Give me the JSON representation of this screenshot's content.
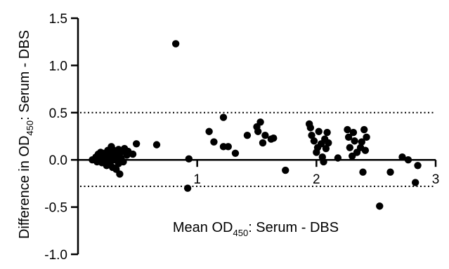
{
  "chart_data": {
    "type": "scatter",
    "xlabel": "Mean OD450: Serum - DBS",
    "ylabel": "Difference in OD450: Serum - DBS",
    "xlabel_parts": {
      "pre": "Mean OD",
      "sub": "450",
      "post": ": Serum - DBS"
    },
    "ylabel_parts": {
      "pre": "Difference in OD",
      "sub": "450",
      "post": ": Serum - DBS"
    },
    "xlim": [
      0,
      3
    ],
    "ylim": [
      -1.0,
      1.5
    ],
    "x_ticks": [
      1,
      2,
      3
    ],
    "x_tick_labels": [
      "1",
      "2",
      "3"
    ],
    "y_ticks": [
      -1.0,
      -0.5,
      0.0,
      0.5,
      1.0,
      1.5
    ],
    "y_tick_labels": [
      "-1.0",
      "-0.5",
      "0.0",
      "0.5",
      "1.0",
      "1.5"
    ],
    "grid": false,
    "reference_lines": [
      {
        "y": 0.5,
        "style": "dotted"
      },
      {
        "y": -0.28,
        "style": "dotted"
      }
    ],
    "points": [
      {
        "x": 0.12,
        "y": 0.0
      },
      {
        "x": 0.15,
        "y": 0.03
      },
      {
        "x": 0.16,
        "y": -0.02
      },
      {
        "x": 0.17,
        "y": 0.06
      },
      {
        "x": 0.18,
        "y": 0.0
      },
      {
        "x": 0.19,
        "y": 0.08
      },
      {
        "x": 0.2,
        "y": -0.03
      },
      {
        "x": 0.21,
        "y": 0.04
      },
      {
        "x": 0.22,
        "y": 0.07
      },
      {
        "x": 0.23,
        "y": 0.0
      },
      {
        "x": 0.24,
        "y": -0.06
      },
      {
        "x": 0.25,
        "y": 0.1
      },
      {
        "x": 0.26,
        "y": 0.03
      },
      {
        "x": 0.27,
        "y": -0.03
      },
      {
        "x": 0.28,
        "y": 0.14
      },
      {
        "x": 0.28,
        "y": 0.05
      },
      {
        "x": 0.29,
        "y": -0.08
      },
      {
        "x": 0.3,
        "y": 0.0
      },
      {
        "x": 0.3,
        "y": 0.1
      },
      {
        "x": 0.31,
        "y": 0.02
      },
      {
        "x": 0.32,
        "y": -0.1
      },
      {
        "x": 0.33,
        "y": 0.06
      },
      {
        "x": 0.34,
        "y": -0.04
      },
      {
        "x": 0.34,
        "y": 0.11
      },
      {
        "x": 0.35,
        "y": -0.15
      },
      {
        "x": 0.36,
        "y": 0.02
      },
      {
        "x": 0.37,
        "y": 0.09
      },
      {
        "x": 0.38,
        "y": -0.02
      },
      {
        "x": 0.39,
        "y": 0.12
      },
      {
        "x": 0.41,
        "y": 0.05
      },
      {
        "x": 0.42,
        "y": 0.09
      },
      {
        "x": 0.46,
        "y": 0.06
      },
      {
        "x": 0.49,
        "y": 0.17
      },
      {
        "x": 0.66,
        "y": 0.16
      },
      {
        "x": 0.82,
        "y": 1.23
      },
      {
        "x": 0.92,
        "y": -0.3
      },
      {
        "x": 0.93,
        "y": 0.01
      },
      {
        "x": 1.1,
        "y": 0.3
      },
      {
        "x": 1.14,
        "y": 0.19
      },
      {
        "x": 1.22,
        "y": 0.45
      },
      {
        "x": 1.22,
        "y": 0.14
      },
      {
        "x": 1.26,
        "y": 0.14
      },
      {
        "x": 1.32,
        "y": 0.07
      },
      {
        "x": 1.42,
        "y": 0.26
      },
      {
        "x": 1.5,
        "y": 0.35
      },
      {
        "x": 1.51,
        "y": 0.3
      },
      {
        "x": 1.53,
        "y": 0.4
      },
      {
        "x": 1.55,
        "y": 0.18
      },
      {
        "x": 1.57,
        "y": 0.26
      },
      {
        "x": 1.62,
        "y": 0.22
      },
      {
        "x": 1.64,
        "y": 0.23
      },
      {
        "x": 1.74,
        "y": -0.11
      },
      {
        "x": 1.94,
        "y": 0.38
      },
      {
        "x": 1.95,
        "y": 0.34
      },
      {
        "x": 1.96,
        "y": 0.26
      },
      {
        "x": 1.98,
        "y": 0.2
      },
      {
        "x": 2.0,
        "y": 0.08
      },
      {
        "x": 2.01,
        "y": 0.13
      },
      {
        "x": 2.02,
        "y": 0.3
      },
      {
        "x": 2.04,
        "y": 0.17
      },
      {
        "x": 2.05,
        "y": 0.03
      },
      {
        "x": 2.06,
        "y": -0.02
      },
      {
        "x": 2.07,
        "y": 0.22
      },
      {
        "x": 2.08,
        "y": 0.12
      },
      {
        "x": 2.09,
        "y": 0.29
      },
      {
        "x": 2.1,
        "y": 0.18
      },
      {
        "x": 2.18,
        "y": 0.02
      },
      {
        "x": 2.26,
        "y": 0.32
      },
      {
        "x": 2.27,
        "y": 0.24
      },
      {
        "x": 2.28,
        "y": 0.13
      },
      {
        "x": 2.3,
        "y": 0.04
      },
      {
        "x": 2.31,
        "y": 0.29
      },
      {
        "x": 2.32,
        "y": 0.2
      },
      {
        "x": 2.34,
        "y": 0.08
      },
      {
        "x": 2.37,
        "y": 0.13
      },
      {
        "x": 2.38,
        "y": 0.19
      },
      {
        "x": 2.39,
        "y": -0.13
      },
      {
        "x": 2.4,
        "y": 0.32
      },
      {
        "x": 2.41,
        "y": 0.1
      },
      {
        "x": 2.42,
        "y": 0.24
      },
      {
        "x": 2.53,
        "y": -0.49
      },
      {
        "x": 2.62,
        "y": -0.13
      },
      {
        "x": 2.72,
        "y": 0.03
      },
      {
        "x": 2.77,
        "y": 0.0
      },
      {
        "x": 2.83,
        "y": -0.24
      },
      {
        "x": 2.85,
        "y": -0.06
      }
    ]
  }
}
